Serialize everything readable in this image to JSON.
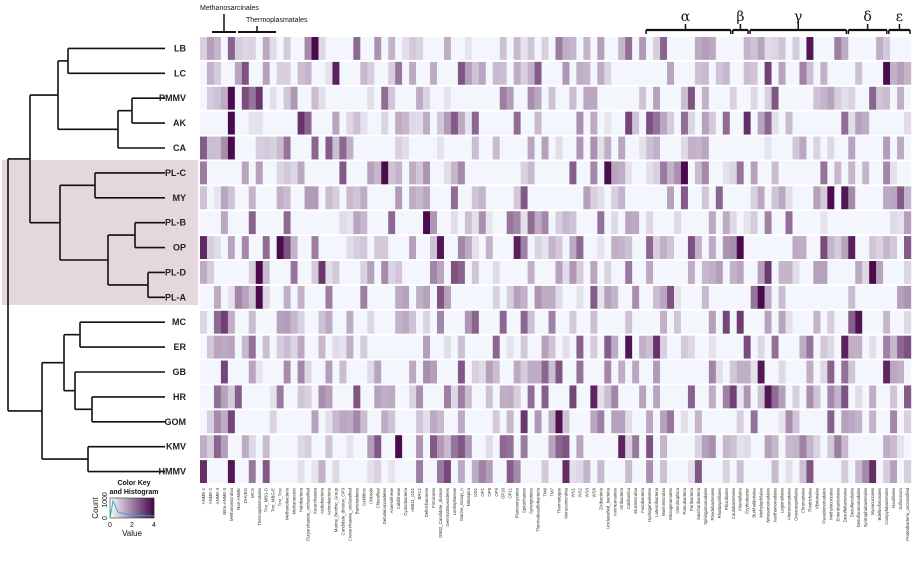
{
  "chart_data": {
    "type": "heatmap",
    "rows": [
      "LB",
      "LC",
      "PMMV",
      "AK",
      "CA",
      "PL-C",
      "MY",
      "PL-B",
      "OP",
      "PL-D",
      "PL-A",
      "MC",
      "ER",
      "GB",
      "HR",
      "GOM",
      "KMV",
      "HMMV"
    ],
    "highlighted_rows": [
      "PL-C",
      "MY",
      "PL-B",
      "OP",
      "PL-D",
      "PL-A"
    ],
    "columns": [
      "ANME-1",
      "ANME-2",
      "ANME-3",
      "Nitro-ANME-3",
      "Methanomicrobia",
      "Non-ANME",
      "DHVEG",
      "MCG",
      "Thermoplasmatales",
      "Tmr_MBG-D",
      "Tmr_MBG-E",
      "Tmr_Tmv",
      "Methanobacteria",
      "Methanococci",
      "Halobacteria",
      "Euryarchaeota_unclassified",
      "Korarchaeota",
      "Acidobacteria",
      "Actinobacteria",
      "Marine_Benthic_Group",
      "Candidate_division_OP3",
      "Crenarchaeota_unclassified",
      "Bacteroidetes",
      "Caldithrix",
      "Chlorobi",
      "Chloroflexi",
      "Dehalococcoidetes",
      "Anaerolineae",
      "Caldilineae",
      "Cyanobacteria",
      "AB011_OD1",
      "BRC1",
      "Deferribacteres",
      "Firmicutes",
      "GN02_Candidate_division",
      "Gemmatimonadetes",
      "Lentisphaerae",
      "Marine_Group_A",
      "Nitrospira",
      "OD1",
      "OP1",
      "OP8",
      "OP9",
      "OP10",
      "OP11",
      "Planctomycetes",
      "Spirochaetes",
      "Synergistetes",
      "Thermodesulfobacteria",
      "TM6",
      "TM7",
      "Thermotogae",
      "Verrucomicrobia",
      "WS1",
      "WS2",
      "WS3",
      "WS6",
      "Zixibacteria",
      "Unclassified_bacteria",
      "Aminicenantes",
      "Atribacteria",
      "Caldiserica",
      "Elusimicrobia",
      "Fusobacteria",
      "Hydrogenedentes",
      "Latescibacteria",
      "Marinimicrobia",
      "Microgenomates",
      "Omnitrophica",
      "Parcubacteria",
      "Poribacteria",
      "Saccharibacteria",
      "Sphingomonadales",
      "Rhodobacterales",
      "Rhodospirillales",
      "Rhizobiales",
      "Caulobacterales",
      "Kiloniellales",
      "Erythrobacter",
      "Burkholderiales",
      "Methylophilales",
      "Nitrosomonadales",
      "Xanthomonadales",
      "Legionellales",
      "Alteromonadales",
      "Oceanospirillales",
      "Chromatiales",
      "Thiotrichales",
      "Vibrionales",
      "Pseudomonadales",
      "Methylococcales",
      "Enterobacteriales",
      "Desulfobacterales",
      "Desulfarculales",
      "Desulfuromonadales",
      "Syntrophobacterales",
      "Myxococcales",
      "Bdellovibrionales",
      "Campylobacterales",
      "Nautiliales",
      "Sulfurovum",
      "Proteobacteria_unclassified"
    ],
    "value_range": [
      0,
      4
    ],
    "color_scale": [
      "#f3f6fc",
      "#4a0a4c"
    ],
    "groups": [
      {
        "label": "Methanosarcinales"
      },
      {
        "label": "Thermoplasmatales"
      },
      {
        "label": "α"
      },
      {
        "label": "β"
      },
      {
        "label": "γ"
      },
      {
        "label": "δ"
      },
      {
        "label": "ε"
      }
    ],
    "color_key": {
      "title_line1": "Color Key",
      "title_line2": "and Histogram",
      "ylabel": "Count",
      "xlabel": "Value",
      "x_ticks": [
        "0",
        "2",
        "4"
      ],
      "y_ticks": [
        "0",
        "1000"
      ]
    }
  }
}
